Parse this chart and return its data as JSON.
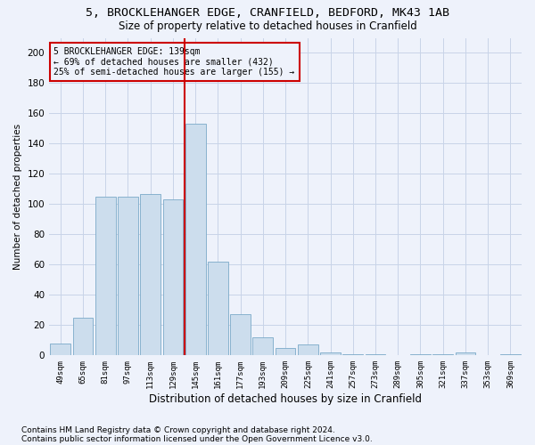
{
  "title": "5, BROCKLEHANGER EDGE, CRANFIELD, BEDFORD, MK43 1AB",
  "subtitle": "Size of property relative to detached houses in Cranfield",
  "xlabel": "Distribution of detached houses by size in Cranfield",
  "ylabel": "Number of detached properties",
  "footnote1": "Contains HM Land Registry data © Crown copyright and database right 2024.",
  "footnote2": "Contains public sector information licensed under the Open Government Licence v3.0.",
  "bar_color": "#ccdded",
  "bar_edge_color": "#7aaac8",
  "grid_color": "#c8d4e8",
  "annotation_box_color": "#cc0000",
  "vline_color": "#cc0000",
  "categories": [
    "49sqm",
    "65sqm",
    "81sqm",
    "97sqm",
    "113sqm",
    "129sqm",
    "145sqm",
    "161sqm",
    "177sqm",
    "193sqm",
    "209sqm",
    "225sqm",
    "241sqm",
    "257sqm",
    "273sqm",
    "289sqm",
    "305sqm",
    "321sqm",
    "337sqm",
    "353sqm",
    "369sqm"
  ],
  "values": [
    8,
    25,
    105,
    105,
    107,
    103,
    153,
    62,
    27,
    12,
    5,
    7,
    2,
    1,
    1,
    0,
    1,
    1,
    2,
    0,
    1
  ],
  "vline_position": 6.0,
  "annotation_text": "5 BROCKLEHANGER EDGE: 139sqm\n← 69% of detached houses are smaller (432)\n25% of semi-detached houses are larger (155) →",
  "ylim": [
    0,
    210
  ],
  "yticks": [
    0,
    20,
    40,
    60,
    80,
    100,
    120,
    140,
    160,
    180,
    200
  ],
  "bg_color": "#eef2fb",
  "title_fontsize": 9.5,
  "subtitle_fontsize": 8.5,
  "footnote_fontsize": 6.5
}
